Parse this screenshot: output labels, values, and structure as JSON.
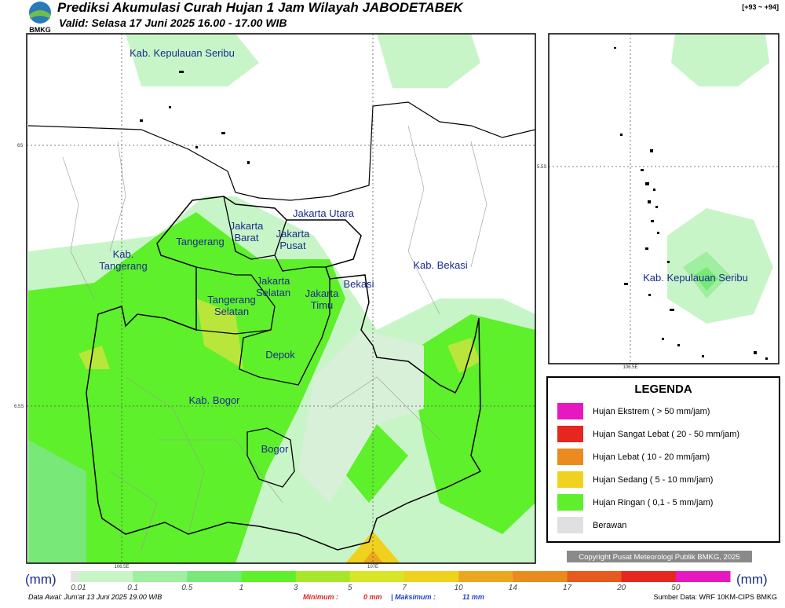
{
  "header": {
    "title": "Prediksi Akumulasi Curah Hujan 1 Jam Wilayah JABODETABEK",
    "valid": "Valid: Selasa 17 Juni 2025 16.00 - 17.00 WIB",
    "logo": "BMKG",
    "code": "[+93 ~ +94]"
  },
  "map": {
    "labels": [
      {
        "lines": [
          "Kab. Kepulauan Seribu"
        ]
      },
      {
        "lines": [
          "Jakarta Utara"
        ]
      },
      {
        "lines": [
          "Jakarta",
          "Barat"
        ]
      },
      {
        "lines": [
          "Jakarta",
          "Pusat"
        ]
      },
      {
        "lines": [
          "Tangerang"
        ]
      },
      {
        "lines": [
          "Kab.",
          "Tangerang"
        ]
      },
      {
        "lines": [
          "Jakarta",
          "Selatan"
        ]
      },
      {
        "lines": [
          "Jakarta",
          "Timu"
        ]
      },
      {
        "lines": [
          "Bekasi"
        ]
      },
      {
        "lines": [
          "Kab. Bekasi"
        ]
      },
      {
        "lines": [
          "Tangerang",
          "Selatan"
        ]
      },
      {
        "lines": [
          "Depok"
        ]
      },
      {
        "lines": [
          "Kab. Bogor"
        ]
      },
      {
        "lines": [
          "Bogor"
        ]
      }
    ],
    "grid_labels": [
      "6S",
      "6.5S",
      "106.5E",
      "107E"
    ]
  },
  "inset": {
    "label": "Kab. Kepulauan Seribu",
    "grid_labels": [
      "5.5S",
      "106.5E"
    ]
  },
  "legend": {
    "title": "LEGENDA",
    "items": [
      "Hujan Ekstrem ( > 50 mm/jam)",
      "Hujan Sangat Lebat ( 20 - 50 mm/jam)",
      "Hujan Lebat ( 10 - 20 mm/jam)",
      "Hujan Sedang ( 5 - 10 mm/jam)",
      "Hujan Ringan ( 0,1 - 5 mm/jam)",
      "Berawan"
    ]
  },
  "copyright": "Copyright Pusat Meteorologi Publik BMKG, 2025",
  "colorbar": {
    "unit": "(mm)",
    "ticks": [
      "0.01",
      "0.1",
      "0.5",
      "1",
      "3",
      "5",
      "7",
      "10",
      "14",
      "17",
      "20",
      "50"
    ]
  },
  "footer": {
    "data_awal": "Data Awal: Jum'at 13 Juni 2025 19.00 WIB",
    "minimum_label": "Minimum :",
    "minimum": "0 mm",
    "maximum_label": "| Maksimum :",
    "maximum": "11 mm",
    "source": "Sumber Data: WRF 10KM-CIPS BMKG"
  }
}
